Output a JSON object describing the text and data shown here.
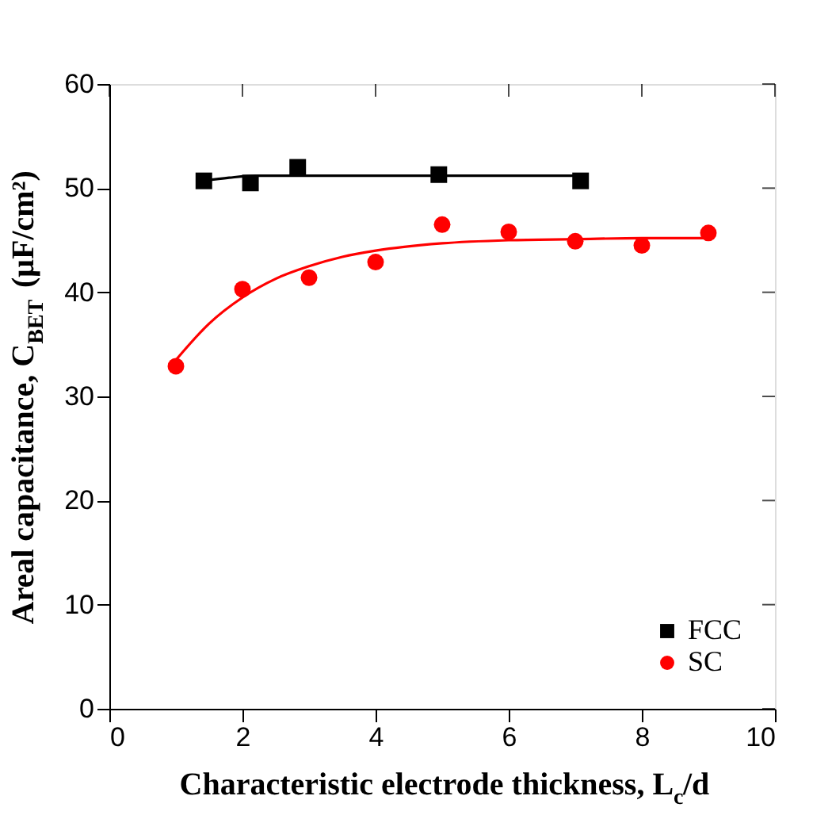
{
  "chart_data": {
    "type": "scatter",
    "xlabel": "Characteristic electrode thickness, L$_{c}$/d",
    "ylabel": "Areal capacitance, C$_{BET}$ (μF/cm²)",
    "xlim": [
      0,
      10
    ],
    "xticks": [
      0,
      2,
      4,
      6,
      8,
      10
    ],
    "ylim": [
      0,
      60
    ],
    "yticks": [
      0,
      10,
      20,
      30,
      40,
      50,
      60
    ],
    "grid": false,
    "legend": "bottom right",
    "series": [
      {
        "name": "FCC",
        "type": "scatter",
        "marker": "square",
        "color": "#000000",
        "x": [
          1.42,
          2.12,
          2.83,
          4.95,
          7.08
        ],
        "values": [
          50.7,
          50.5,
          52.0,
          51.3,
          50.7
        ]
      },
      {
        "name": "SC",
        "type": "scatter",
        "marker": "circle",
        "color": "#ff0000",
        "x": [
          1,
          2,
          3,
          4,
          5,
          6,
          7,
          8,
          9
        ],
        "values": [
          32.9,
          40.3,
          41.4,
          42.9,
          46.5,
          45.8,
          44.9,
          44.5,
          45.7
        ]
      },
      {
        "type": "line",
        "color": "#000000",
        "x": [
          1.42,
          1.8,
          2.2,
          3,
          5,
          7.08
        ],
        "values": [
          50.7,
          51.0,
          51.2,
          51.2,
          51.2,
          51.2
        ]
      },
      {
        "type": "line",
        "color": "#ff0000",
        "x": [
          1,
          1.5,
          2,
          2.5,
          3,
          3.5,
          4,
          5,
          6,
          7,
          8,
          9
        ],
        "values": [
          33.5,
          37.0,
          39.5,
          41.3,
          42.5,
          43.4,
          44.0,
          44.7,
          45.0,
          45.1,
          45.2,
          45.2
        ]
      }
    ]
  }
}
